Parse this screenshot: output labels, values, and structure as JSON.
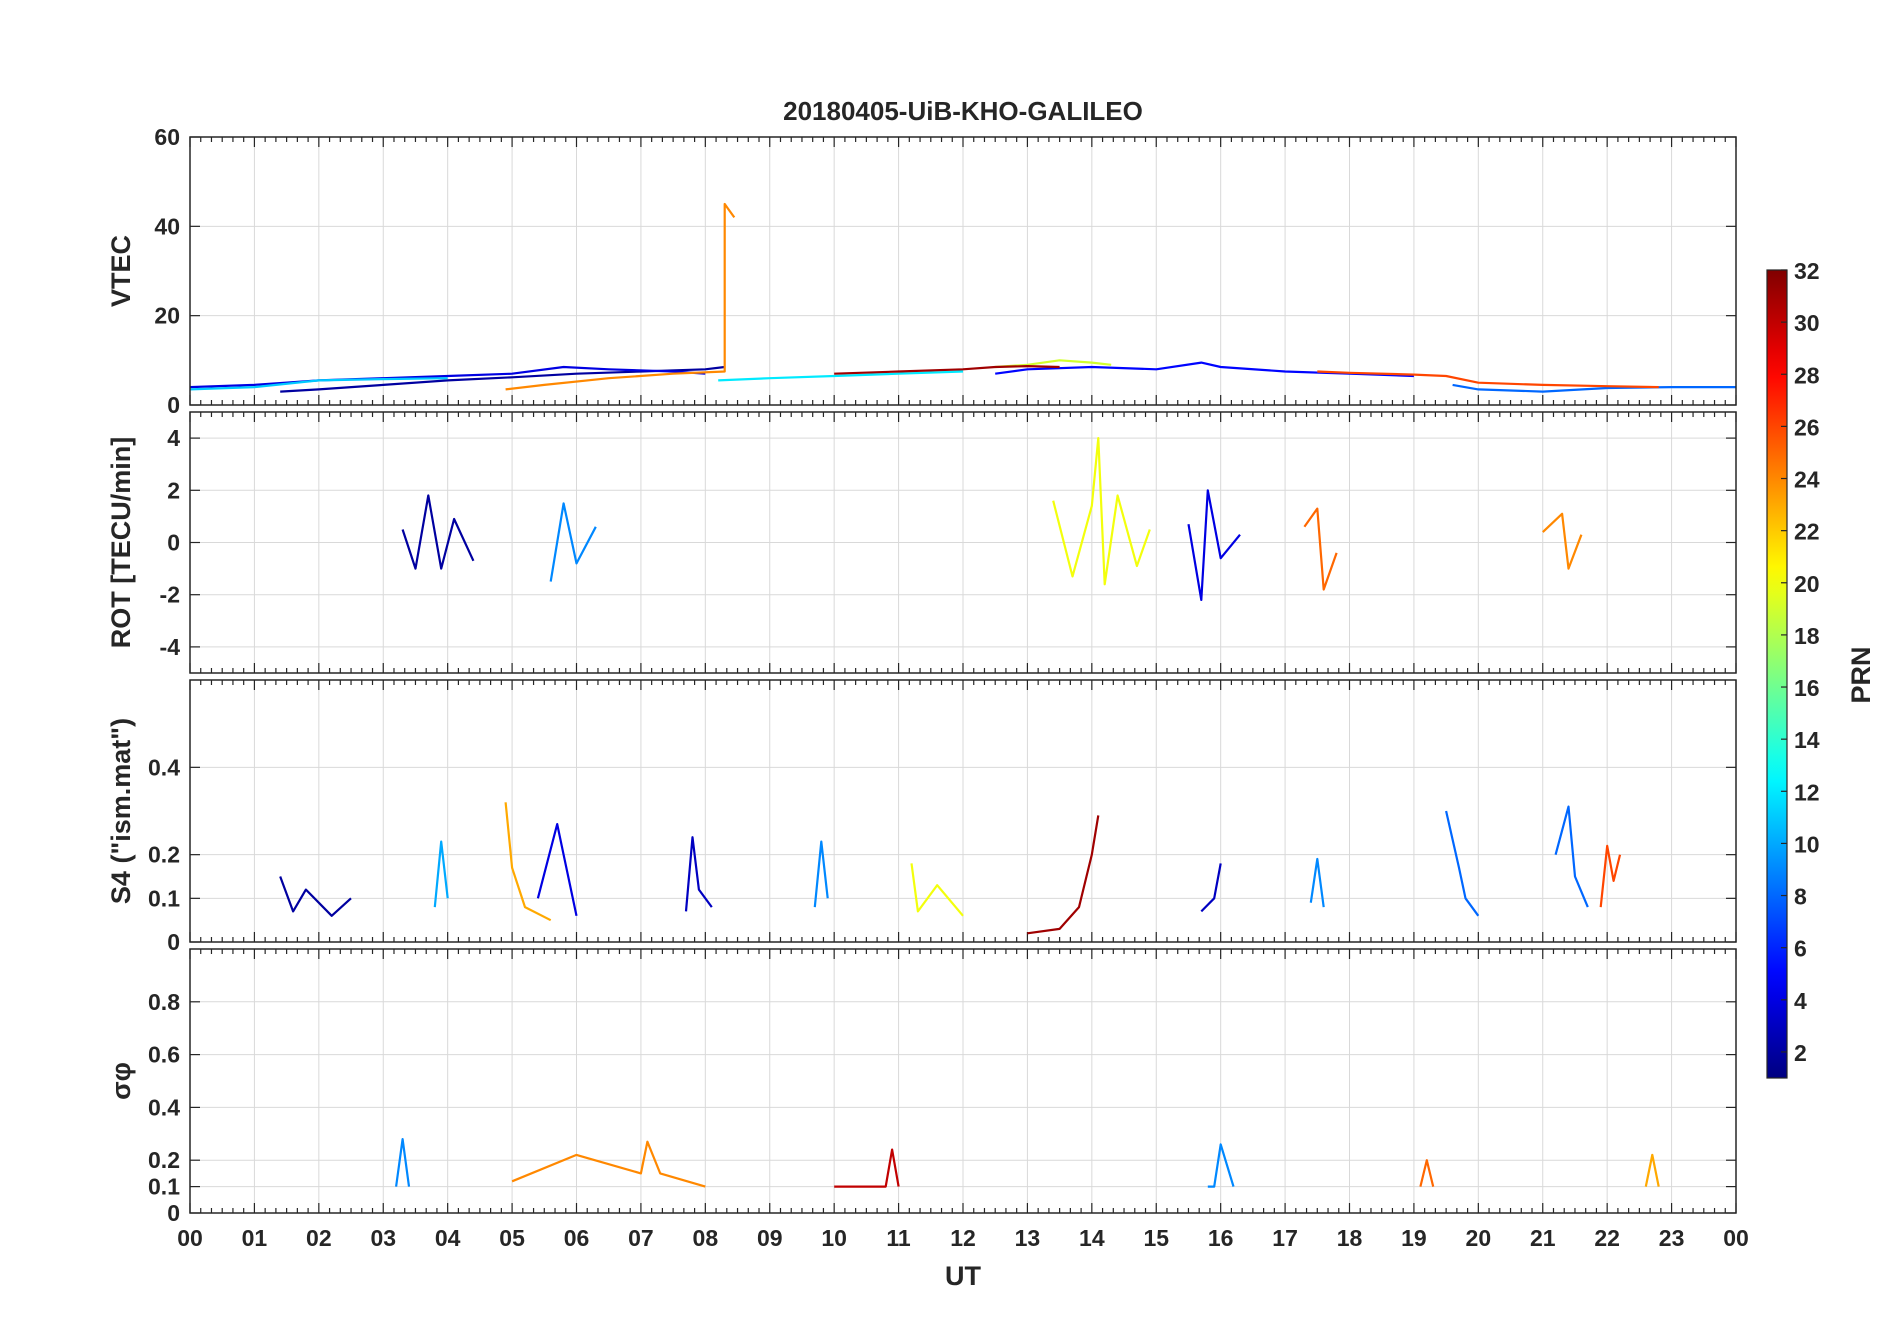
{
  "chart_data": {
    "title": "20180405-UiB-KHO-GALILEO",
    "type": "line",
    "xlabel": "UT",
    "xticks": [
      "00",
      "01",
      "02",
      "03",
      "04",
      "05",
      "06",
      "07",
      "08",
      "09",
      "10",
      "11",
      "12",
      "13",
      "14",
      "15",
      "16",
      "17",
      "18",
      "19",
      "20",
      "21",
      "22",
      "23",
      "00"
    ],
    "xlim": [
      0,
      24
    ],
    "colorbar": {
      "label": "PRN",
      "range": [
        1,
        32
      ],
      "ticks": [
        "2",
        "4",
        "6",
        "8",
        "10",
        "12",
        "14",
        "16",
        "18",
        "20",
        "22",
        "24",
        "26",
        "28",
        "30",
        "32"
      ],
      "colormap": "jet"
    },
    "panels": [
      {
        "name": "vtec",
        "ylabel": "VTEC",
        "ylim": [
          0,
          60
        ],
        "yticks": [
          "0",
          "20",
          "40",
          "60"
        ],
        "series": [
          {
            "prn": 2,
            "x": [
              1.4,
              2,
              3,
              4,
              5,
              6,
              7,
              8,
              8.3
            ],
            "y": [
              3,
              3.5,
              4.5,
              5.5,
              6.2,
              7,
              7.5,
              8,
              8.5
            ]
          },
          {
            "prn": 4,
            "x": [
              0,
              1,
              2,
              3,
              4,
              5,
              5.8,
              6.5,
              7.5,
              8
            ],
            "y": [
              4,
              4.5,
              5.5,
              6,
              6.5,
              7,
              8.5,
              8,
              7.5,
              7
            ]
          },
          {
            "prn": 5,
            "x": [
              12.5,
              13,
              14,
              15,
              15.7,
              16,
              17,
              18,
              19
            ],
            "y": [
              7,
              8,
              8.5,
              8,
              9.5,
              8.5,
              7.5,
              7,
              6.5
            ]
          },
          {
            "prn": 8,
            "x": [
              19.6,
              20,
              21,
              22,
              23,
              24
            ],
            "y": [
              4.5,
              3.5,
              3,
              3.8,
              4,
              4
            ]
          },
          {
            "prn": 11,
            "x": [
              0,
              1,
              2,
              3,
              4
            ],
            "y": [
              3.5,
              4,
              5.5,
              5.8,
              6
            ]
          },
          {
            "prn": 12,
            "x": [
              8.2,
              9,
              10,
              11,
              12
            ],
            "y": [
              5.5,
              6,
              6.5,
              7,
              7.5
            ]
          },
          {
            "prn": 19,
            "x": [
              12.5,
              13,
              13.5,
              14,
              14.3
            ],
            "y": [
              8.5,
              9,
              10,
              9.5,
              9
            ]
          },
          {
            "prn": 24,
            "x": [
              4.9,
              5.5,
              6.5,
              7.5,
              8.3,
              8.3,
              8.35,
              8.45
            ],
            "y": [
              3.5,
              4.5,
              6,
              7,
              7.5,
              45,
              44,
              42
            ]
          },
          {
            "prn": 26,
            "x": [
              17.5,
              18,
              19,
              19.5,
              20,
              21,
              22,
              22.8
            ],
            "y": [
              7.5,
              7.2,
              6.8,
              6.5,
              5,
              4.5,
              4.2,
              4
            ]
          },
          {
            "prn": 31,
            "x": [
              10,
              11,
              12,
              12.5,
              13,
              13.5
            ],
            "y": [
              7,
              7.5,
              8,
              8.5,
              8.7,
              8.5
            ]
          }
        ]
      },
      {
        "name": "rot",
        "ylabel": "ROT [TECU/min]",
        "ylim": [
          -5,
          5
        ],
        "yticks": [
          "-4",
          "-2",
          "0",
          "2",
          "4"
        ],
        "series": [
          {
            "prn": 2,
            "x": [
              3.3,
              3.5,
              3.7,
              3.9,
              4.1,
              4.4
            ],
            "y": [
              0.5,
              -1,
              1.8,
              -1,
              0.9,
              -0.7
            ]
          },
          {
            "prn": 4,
            "x": [
              15.5,
              15.7,
              15.8,
              16,
              16.3
            ],
            "y": [
              0.7,
              -2.2,
              2,
              -0.6,
              0.3
            ]
          },
          {
            "prn": 9,
            "x": [
              5.6,
              5.8,
              6,
              6.3
            ],
            "y": [
              -1.5,
              1.5,
              -0.8,
              0.6
            ]
          },
          {
            "prn": 20,
            "x": [
              13.4,
              13.7,
              14,
              14.1,
              14.2,
              14.4,
              14.7,
              14.9
            ],
            "y": [
              1.6,
              -1.3,
              1.4,
              4,
              -1.6,
              1.8,
              -0.9,
              0.5
            ]
          },
          {
            "prn": 25,
            "x": [
              17.3,
              17.5,
              17.6,
              17.8
            ],
            "y": [
              0.6,
              1.3,
              -1.8,
              -0.4
            ]
          },
          {
            "prn": 24,
            "x": [
              21,
              21.3,
              21.4,
              21.6
            ],
            "y": [
              0.4,
              1.1,
              -1,
              0.3
            ]
          }
        ]
      },
      {
        "name": "s4",
        "ylabel": "S4 (\"ism.mat\")",
        "ylim": [
          0,
          0.6
        ],
        "yticks": [
          "0",
          "0.1",
          "0.2",
          "0.4"
        ],
        "series": [
          {
            "prn": 2,
            "x": [
              1.4,
              1.6,
              1.8,
              2.2,
              2.5
            ],
            "y": [
              0.15,
              0.07,
              0.12,
              0.06,
              0.1
            ]
          },
          {
            "prn": 4,
            "x": [
              5.4,
              5.7,
              5.8,
              6
            ],
            "y": [
              0.1,
              0.27,
              0.2,
              0.06
            ]
          },
          {
            "prn": 10,
            "x": [
              3.8,
              3.9,
              4
            ],
            "y": [
              0.08,
              0.23,
              0.1
            ]
          },
          {
            "prn": 23,
            "x": [
              4.9,
              5,
              5.2,
              5.6
            ],
            "y": [
              0.32,
              0.17,
              0.08,
              0.05
            ]
          },
          {
            "prn": 3,
            "x": [
              7.7,
              7.8,
              7.9,
              8.1
            ],
            "y": [
              0.07,
              0.24,
              0.12,
              0.08
            ]
          },
          {
            "prn": 9,
            "x": [
              9.7,
              9.8,
              9.9
            ],
            "y": [
              0.08,
              0.23,
              0.1
            ]
          },
          {
            "prn": 20,
            "x": [
              11.2,
              11.3,
              11.6,
              12
            ],
            "y": [
              0.18,
              0.07,
              0.13,
              0.06
            ]
          },
          {
            "prn": 31,
            "x": [
              13,
              13.5,
              13.8,
              14,
              14.1
            ],
            "y": [
              0.02,
              0.03,
              0.08,
              0.2,
              0.29
            ]
          },
          {
            "prn": 3,
            "x": [
              15.7,
              15.9,
              16
            ],
            "y": [
              0.07,
              0.1,
              0.18
            ]
          },
          {
            "prn": 9,
            "x": [
              17.4,
              17.5,
              17.6
            ],
            "y": [
              0.09,
              0.19,
              0.08
            ]
          },
          {
            "prn": 8,
            "x": [
              19.5,
              19.7,
              19.8,
              20
            ],
            "y": [
              0.3,
              0.17,
              0.1,
              0.06
            ]
          },
          {
            "prn": 8,
            "x": [
              21.2,
              21.4,
              21.5,
              21.7
            ],
            "y": [
              0.2,
              0.31,
              0.15,
              0.08
            ]
          },
          {
            "prn": 26,
            "x": [
              21.9,
              22,
              22.1,
              22.2
            ],
            "y": [
              0.08,
              0.22,
              0.14,
              0.2
            ]
          }
        ]
      },
      {
        "name": "sigma-phi",
        "ylabel": "σφ",
        "ylim": [
          0,
          1
        ],
        "yticks": [
          "0",
          "0.1",
          "0.2",
          "0.4",
          "0.6",
          "0.8"
        ],
        "series": [
          {
            "prn": 9,
            "x": [
              3.2,
              3.3,
              3.4
            ],
            "y": [
              0.1,
              0.28,
              0.1
            ]
          },
          {
            "prn": 24,
            "x": [
              5,
              6,
              7,
              7.1,
              7.3,
              8
            ],
            "y": [
              0.12,
              0.22,
              0.15,
              0.27,
              0.15,
              0.1
            ]
          },
          {
            "prn": 30,
            "x": [
              10,
              10.8,
              10.9,
              11
            ],
            "y": [
              0.1,
              0.1,
              0.24,
              0.1
            ]
          },
          {
            "prn": 9,
            "x": [
              15.8,
              15.9,
              16,
              16.2
            ],
            "y": [
              0.1,
              0.1,
              0.26,
              0.1
            ]
          },
          {
            "prn": 25,
            "x": [
              19.1,
              19.2,
              19.3
            ],
            "y": [
              0.1,
              0.2,
              0.1
            ]
          },
          {
            "prn": 23,
            "x": [
              22.6,
              22.7,
              22.8
            ],
            "y": [
              0.1,
              0.22,
              0.1
            ]
          }
        ]
      }
    ]
  }
}
